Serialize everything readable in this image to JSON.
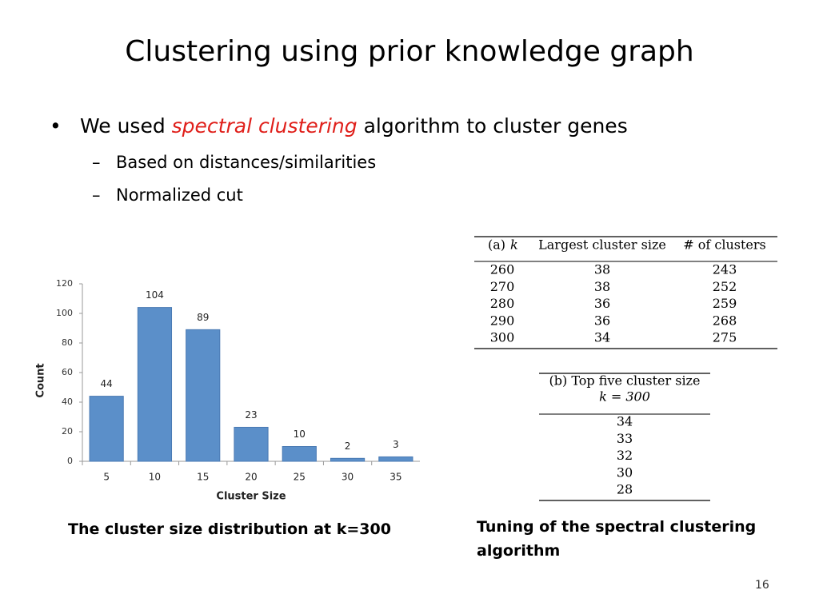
{
  "title": "Clustering using prior knowledge graph",
  "bullets": [
    {
      "text": [
        "We used ",
        "spectral clustering",
        " algorithm to cluster genes"
      ],
      "sub": [
        "Based on distances/similarities",
        "Normalized cut"
      ]
    }
  ],
  "chart_data": {
    "type": "bar",
    "y_label": "Count",
    "x_label": "Cluster Size",
    "categories": [
      "5",
      "10",
      "15",
      "20",
      "25",
      "30",
      "35"
    ],
    "values": [
      44,
      104,
      89,
      23,
      10,
      2,
      3
    ],
    "color": "#5b8fc9",
    "ylim": [
      0,
      120
    ],
    "yticks": [
      0,
      20,
      40,
      60,
      80,
      100,
      120
    ]
  },
  "chart_caption": "The cluster size distribution at k=300",
  "table_a": {
    "label": "(a)",
    "var": "k",
    "columns": [
      "Largest cluster size",
      "# of clusters"
    ],
    "rows": [
      [
        260,
        38,
        243
      ],
      [
        270,
        38,
        252
      ],
      [
        280,
        36,
        259
      ],
      [
        290,
        36,
        268
      ],
      [
        300,
        34,
        275
      ]
    ]
  },
  "table_b": {
    "header": [
      "(b) Top five cluster size",
      "k = 300"
    ],
    "rows": [
      34,
      33,
      32,
      30,
      28
    ]
  },
  "tables_caption": "Tuning of the spectral clustering algorithm",
  "page_number": "16"
}
